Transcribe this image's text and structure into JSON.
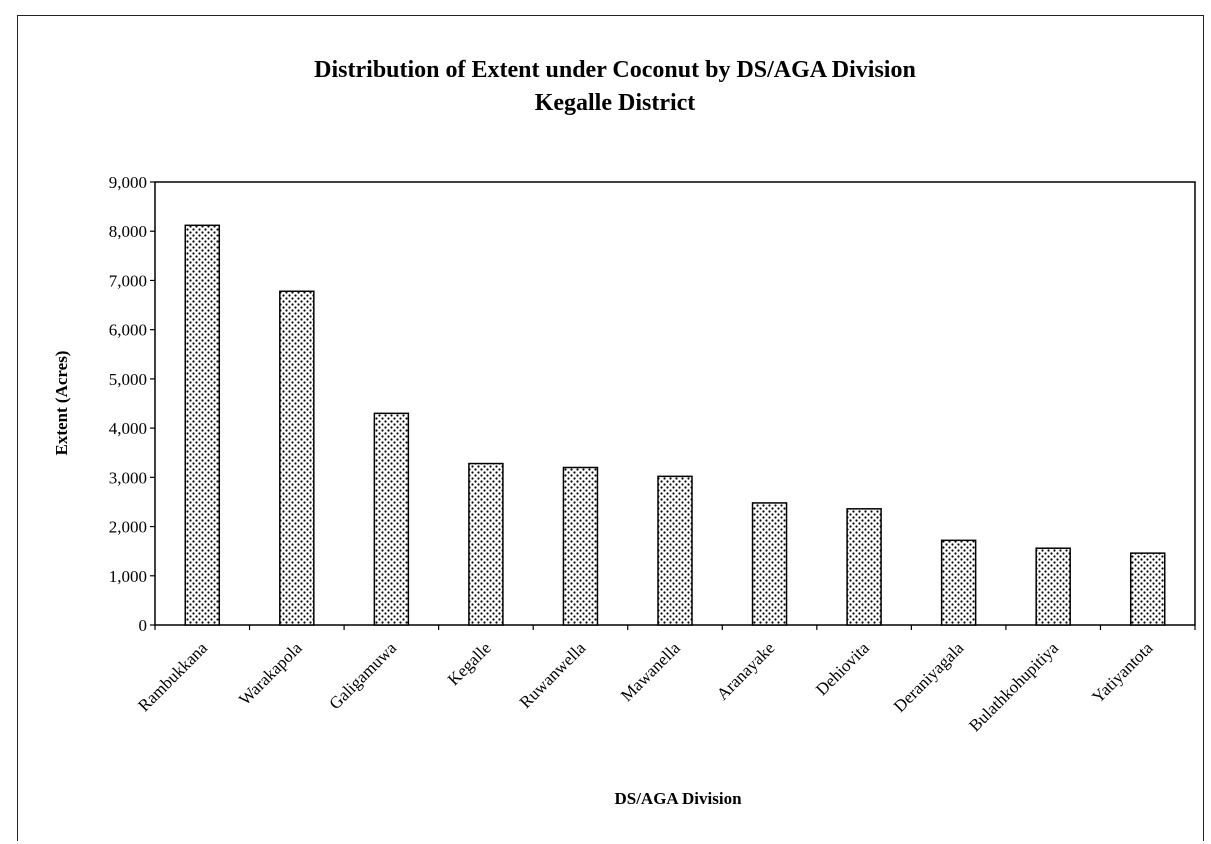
{
  "chart_data": {
    "type": "bar",
    "title": "Distribution of Extent under Coconut by DS/AGA Division",
    "subtitle": "Kegalle District",
    "xlabel": "DS/AGA Division",
    "ylabel": "Extent (Acres)",
    "ylim": [
      0,
      9000
    ],
    "yticks": [
      "0",
      "1,000",
      "2,000",
      "3,000",
      "4,000",
      "5,000",
      "6,000",
      "7,000",
      "8,000",
      "9,000"
    ],
    "grid": false,
    "categories": [
      "Rambukkana",
      "Warakapola",
      "Galigamuwa",
      "Kegalle",
      "Ruwanwella",
      "Mawanella",
      "Aranayake",
      "Dehiovita",
      "Deraniyagala",
      "Bulathkohupitiya",
      "Yatiyantota"
    ],
    "values": [
      8120,
      6780,
      4300,
      3280,
      3200,
      3020,
      2480,
      2360,
      1720,
      1560,
      1460
    ],
    "bar_pattern": "stippled",
    "bar_fill_color": "#ffffff",
    "bar_dot_color": "#000000"
  }
}
